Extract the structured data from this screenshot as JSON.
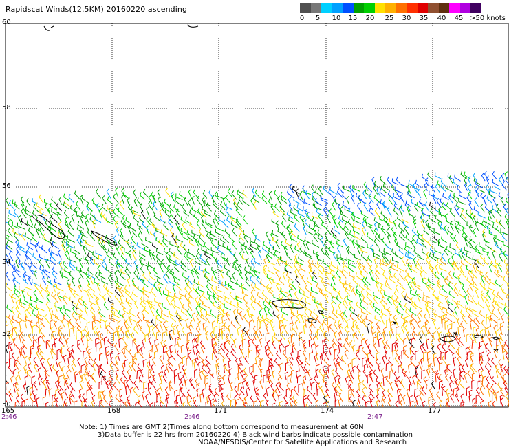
{
  "title": "Rapidscat Winds(12.5KM) 20160220 ascending",
  "legend": {
    "colors": [
      "#505050",
      "#787878",
      "#00d0ff",
      "#00a0ff",
      "#0050ff",
      "#00a000",
      "#00d000",
      "#ffe000",
      "#ffb000",
      "#ff7000",
      "#ff3000",
      "#e00000",
      "#905030",
      "#603010",
      "#ff00ff",
      "#b000e0",
      "#400060"
    ],
    "labels": [
      "0",
      "5",
      "10",
      "15",
      "20",
      "25",
      "30",
      "35",
      "40",
      "45",
      ">50 knots"
    ]
  },
  "map": {
    "lat_labels": [
      "60",
      "58",
      "56",
      "54",
      "52",
      "50"
    ],
    "lon_labels": [
      "165",
      "168",
      "171",
      "174",
      "177"
    ],
    "time_labels": [
      "2:46",
      "2:46",
      "2:47"
    ]
  },
  "notes": {
    "line1": "Note: 1) Times are GMT 2)Times along bottom correspond to measurement at 60N",
    "line2": "3)Data buffer is 22 hrs from 20160220 4) Black wind barbs indicate possible contamination",
    "line3": "NOAA/NESDIS/Center for Satellite Applications and Research"
  }
}
